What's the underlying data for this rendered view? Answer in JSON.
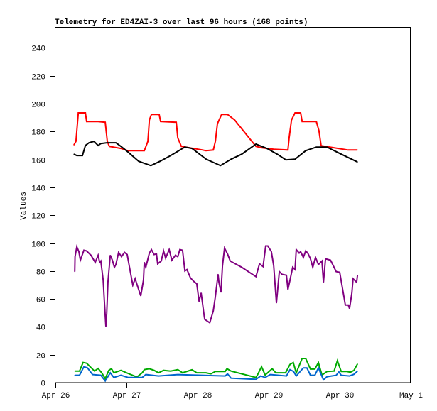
{
  "chart_data": {
    "type": "line",
    "title": "Telemetry for ED4ZAI-3 over last 96 hours (168 points)",
    "xlabel": "",
    "ylabel": "Values",
    "x_units": "hours since Apr 26 00:00",
    "xlim": [
      0,
      120
    ],
    "ylim": [
      0,
      255
    ],
    "grid": false,
    "xticks": [
      {
        "value": 0,
        "label": "Apr 26"
      },
      {
        "value": 24,
        "label": "Apr 27"
      },
      {
        "value": 48,
        "label": "Apr 28"
      },
      {
        "value": 72,
        "label": "Apr 29"
      },
      {
        "value": 96,
        "label": "Apr 30"
      },
      {
        "value": 120,
        "label": "May 1"
      }
    ],
    "yticks": [
      0,
      20,
      40,
      60,
      80,
      100,
      120,
      140,
      160,
      180,
      200,
      220,
      240
    ],
    "series": [
      {
        "name": "red",
        "color": "#ff0000",
        "points": [
          [
            6.3,
            170.4
          ],
          [
            7.0,
            173
          ],
          [
            7.8,
            193.4
          ],
          [
            10.2,
            193.4
          ],
          [
            10.6,
            187.2
          ],
          [
            14.5,
            187.2
          ],
          [
            16.9,
            186.7
          ],
          [
            17.6,
            173
          ],
          [
            18.3,
            169.4
          ],
          [
            22.2,
            167.9
          ],
          [
            24.6,
            166.3
          ],
          [
            30.1,
            166.3
          ],
          [
            31.3,
            173
          ],
          [
            31.8,
            188.3
          ],
          [
            32.5,
            192.3
          ],
          [
            35.1,
            192.3
          ],
          [
            35.6,
            187.2
          ],
          [
            40.9,
            186.7
          ],
          [
            41.4,
            175.5
          ],
          [
            42.6,
            169.4
          ],
          [
            49.8,
            166.8
          ],
          [
            50.9,
            166.3
          ],
          [
            53.4,
            166.8
          ],
          [
            54.1,
            173
          ],
          [
            54.8,
            185.7
          ],
          [
            56.2,
            192.3
          ],
          [
            58.2,
            192.3
          ],
          [
            60.6,
            188.3
          ],
          [
            67.8,
            169.4
          ],
          [
            69.7,
            168.4
          ],
          [
            73.8,
            167.3
          ],
          [
            78.6,
            166.8
          ],
          [
            79.0,
            175.5
          ],
          [
            79.8,
            188.3
          ],
          [
            81.0,
            193.4
          ],
          [
            82.9,
            193.4
          ],
          [
            83.4,
            187.2
          ],
          [
            88.2,
            187.2
          ],
          [
            89.1,
            180.6
          ],
          [
            89.8,
            169.9
          ],
          [
            94.1,
            168.4
          ],
          [
            98.9,
            166.8
          ],
          [
            102.1,
            166.8
          ]
        ]
      },
      {
        "name": "black",
        "color": "#000000",
        "points": [
          [
            6.3,
            163.8
          ],
          [
            7.3,
            162.8
          ],
          [
            9.2,
            162.8
          ],
          [
            10.2,
            170
          ],
          [
            11.4,
            172
          ],
          [
            13.1,
            173
          ],
          [
            14.5,
            170
          ],
          [
            15.4,
            171.4
          ],
          [
            17.4,
            172
          ],
          [
            20.5,
            172
          ],
          [
            22.2,
            169.4
          ],
          [
            24.6,
            165.3
          ],
          [
            28.2,
            158.7
          ],
          [
            32.3,
            155.6
          ],
          [
            35.4,
            158.7
          ],
          [
            39.0,
            162.8
          ],
          [
            43.8,
            168.9
          ],
          [
            46.2,
            167.9
          ],
          [
            51.0,
            160.2
          ],
          [
            55.8,
            155.6
          ],
          [
            59.4,
            160.2
          ],
          [
            63.0,
            163.8
          ],
          [
            67.8,
            171
          ],
          [
            71.4,
            168
          ],
          [
            75.0,
            163.8
          ],
          [
            77.9,
            159.7
          ],
          [
            81.0,
            160.2
          ],
          [
            84.6,
            166.3
          ],
          [
            88.2,
            168.9
          ],
          [
            91.8,
            168.9
          ],
          [
            96.6,
            163.8
          ],
          [
            102.1,
            158.2
          ]
        ]
      },
      {
        "name": "purple",
        "color": "#800080",
        "points": [
          [
            6.6,
            79.6
          ],
          [
            6.7,
            90.3
          ],
          [
            7.3,
            97.4
          ],
          [
            8.0,
            93.9
          ],
          [
            8.5,
            87.8
          ],
          [
            9.7,
            94.9
          ],
          [
            10.6,
            94.4
          ],
          [
            12.1,
            91.3
          ],
          [
            13.5,
            86.2
          ],
          [
            14.5,
            91.3
          ],
          [
            15.0,
            86.2
          ],
          [
            15.4,
            87.2
          ],
          [
            16.2,
            73.5
          ],
          [
            16.6,
            58.2
          ],
          [
            17.1,
            40.3
          ],
          [
            17.4,
            49.5
          ],
          [
            17.8,
            71.9
          ],
          [
            18.6,
            91.3
          ],
          [
            19.3,
            87.8
          ],
          [
            20.0,
            82.7
          ],
          [
            20.5,
            84.7
          ],
          [
            21.4,
            93.4
          ],
          [
            22.4,
            90.3
          ],
          [
            23.4,
            93.4
          ],
          [
            24.3,
            91.8
          ],
          [
            25.0,
            83.7
          ],
          [
            26.2,
            69.9
          ],
          [
            27.0,
            74.5
          ],
          [
            27.7,
            69.9
          ],
          [
            28.9,
            62.2
          ],
          [
            29.8,
            73.5
          ],
          [
            30.1,
            86.2
          ],
          [
            30.6,
            82.7
          ],
          [
            31.8,
            92.9
          ],
          [
            32.5,
            95.4
          ],
          [
            33.4,
            91.8
          ],
          [
            34.2,
            92.3
          ],
          [
            34.6,
            85.2
          ],
          [
            35.8,
            87.2
          ],
          [
            36.6,
            94.4
          ],
          [
            37.3,
            89.3
          ],
          [
            38.5,
            95.4
          ],
          [
            39.4,
            87.8
          ],
          [
            40.6,
            91.3
          ],
          [
            41.4,
            90.3
          ],
          [
            42.1,
            95.4
          ],
          [
            43.0,
            94.9
          ],
          [
            43.8,
            80.1
          ],
          [
            44.5,
            81.1
          ],
          [
            45.7,
            75.0
          ],
          [
            46.9,
            72.4
          ],
          [
            47.8,
            70.9
          ],
          [
            48.6,
            58.2
          ],
          [
            49.3,
            64.3
          ],
          [
            50.2,
            49.5
          ],
          [
            50.5,
            45.4
          ],
          [
            52.2,
            42.9
          ],
          [
            53.4,
            51.5
          ],
          [
            54.1,
            61.7
          ],
          [
            55.0,
            77.6
          ],
          [
            55.3,
            71.9
          ],
          [
            56.0,
            64.8
          ],
          [
            56.5,
            83.7
          ],
          [
            57.2,
            96.4
          ],
          [
            58.2,
            92.3
          ],
          [
            59.1,
            87.2
          ],
          [
            63.0,
            82.7
          ],
          [
            67.8,
            76.0
          ],
          [
            69.0,
            85.2
          ],
          [
            70.2,
            83.2
          ],
          [
            71.1,
            98.0
          ],
          [
            71.8,
            98.0
          ],
          [
            73.0,
            93.9
          ],
          [
            73.8,
            83.7
          ],
          [
            74.7,
            57.1
          ],
          [
            75.7,
            79.6
          ],
          [
            76.6,
            77.6
          ],
          [
            78.1,
            77.0
          ],
          [
            78.6,
            66.8
          ],
          [
            79.3,
            73.5
          ],
          [
            80.2,
            82.7
          ],
          [
            81.0,
            81.1
          ],
          [
            81.4,
            95.4
          ],
          [
            82.4,
            92.9
          ],
          [
            82.9,
            93.9
          ],
          [
            83.8,
            89.8
          ],
          [
            84.6,
            94.4
          ],
          [
            85.3,
            92.9
          ],
          [
            86.2,
            88.8
          ],
          [
            87.0,
            82.7
          ],
          [
            87.9,
            89.8
          ],
          [
            88.9,
            84.7
          ],
          [
            90.1,
            87.2
          ],
          [
            90.6,
            71.9
          ],
          [
            91.3,
            88.8
          ],
          [
            93.0,
            87.8
          ],
          [
            94.9,
            79.6
          ],
          [
            96.1,
            79.1
          ],
          [
            97.3,
            64.3
          ],
          [
            98.0,
            55.6
          ],
          [
            99.0,
            55.6
          ],
          [
            99.4,
            53.1
          ],
          [
            100.2,
            64.3
          ],
          [
            100.6,
            74.5
          ],
          [
            101.8,
            71.9
          ],
          [
            102.1,
            77.0
          ]
        ]
      },
      {
        "name": "green",
        "color": "#00aa00",
        "points": [
          [
            6.6,
            8.3
          ],
          [
            8.2,
            8.3
          ],
          [
            9.4,
            14.4
          ],
          [
            10.6,
            13.9
          ],
          [
            12.6,
            9.7
          ],
          [
            13.3,
            8.3
          ],
          [
            14.5,
            10.2
          ],
          [
            15.7,
            7.1
          ],
          [
            16.9,
            2.9
          ],
          [
            18.1,
            8.8
          ],
          [
            19.0,
            10.0
          ],
          [
            19.8,
            7.1
          ],
          [
            22.2,
            8.8
          ],
          [
            24.6,
            6.6
          ],
          [
            27.0,
            4.6
          ],
          [
            27.7,
            4.2
          ],
          [
            29.4,
            7.1
          ],
          [
            30.1,
            9.3
          ],
          [
            31.8,
            10.0
          ],
          [
            33.4,
            8.8
          ],
          [
            34.9,
            7.1
          ],
          [
            36.6,
            8.8
          ],
          [
            39.0,
            8.3
          ],
          [
            41.4,
            9.3
          ],
          [
            43.0,
            7.1
          ],
          [
            46.2,
            9.2
          ],
          [
            47.8,
            7.1
          ],
          [
            50.9,
            7.1
          ],
          [
            52.6,
            6.3
          ],
          [
            54.1,
            8.0
          ],
          [
            57.4,
            8.0
          ],
          [
            58.0,
            10.0
          ],
          [
            59.4,
            8.3
          ],
          [
            67.8,
            3.7
          ],
          [
            68.5,
            6.3
          ],
          [
            69.7,
            11.4
          ],
          [
            70.9,
            5.5
          ],
          [
            73.3,
            10.0
          ],
          [
            74.5,
            7.1
          ],
          [
            77.8,
            7.1
          ],
          [
            79.3,
            13.1
          ],
          [
            80.4,
            14.4
          ],
          [
            81.4,
            7.1
          ],
          [
            83.4,
            17.3
          ],
          [
            84.6,
            17.3
          ],
          [
            86.2,
            9.7
          ],
          [
            87.7,
            9.7
          ],
          [
            88.9,
            14.4
          ],
          [
            90.1,
            5.5
          ],
          [
            91.8,
            8.0
          ],
          [
            94.2,
            8.3
          ],
          [
            95.3,
            15.7
          ],
          [
            96.6,
            8.0
          ],
          [
            98.5,
            8.0
          ],
          [
            99.7,
            7.5
          ],
          [
            100.9,
            8.8
          ],
          [
            102.1,
            13.4
          ]
        ]
      },
      {
        "name": "blue",
        "color": "#0066cc",
        "points": [
          [
            6.6,
            5.3
          ],
          [
            8.2,
            5.3
          ],
          [
            9.7,
            11.4
          ],
          [
            10.9,
            10.6
          ],
          [
            12.6,
            5.8
          ],
          [
            15.4,
            5.3
          ],
          [
            16.9,
            1.2
          ],
          [
            18.6,
            7.1
          ],
          [
            19.8,
            3.7
          ],
          [
            22.2,
            5.3
          ],
          [
            24.6,
            3.7
          ],
          [
            29.4,
            3.7
          ],
          [
            30.6,
            5.8
          ],
          [
            34.9,
            4.8
          ],
          [
            41.4,
            5.8
          ],
          [
            57.4,
            4.8
          ],
          [
            58.2,
            6.3
          ],
          [
            59.4,
            3.2
          ],
          [
            67.8,
            2.4
          ],
          [
            69.4,
            4.8
          ],
          [
            70.9,
            3.7
          ],
          [
            72.6,
            5.8
          ],
          [
            78.1,
            4.8
          ],
          [
            79.3,
            9.3
          ],
          [
            80.5,
            8.0
          ],
          [
            81.4,
            4.8
          ],
          [
            83.8,
            10.6
          ],
          [
            85.0,
            10.6
          ],
          [
            86.2,
            5.3
          ],
          [
            87.7,
            5.3
          ],
          [
            88.9,
            10.6
          ],
          [
            90.6,
            2.0
          ],
          [
            91.8,
            4.3
          ],
          [
            94.9,
            5.3
          ],
          [
            95.8,
            7.7
          ],
          [
            96.6,
            5.3
          ],
          [
            99.4,
            4.8
          ],
          [
            100.9,
            6.0
          ],
          [
            102.1,
            8.3
          ]
        ]
      }
    ]
  }
}
